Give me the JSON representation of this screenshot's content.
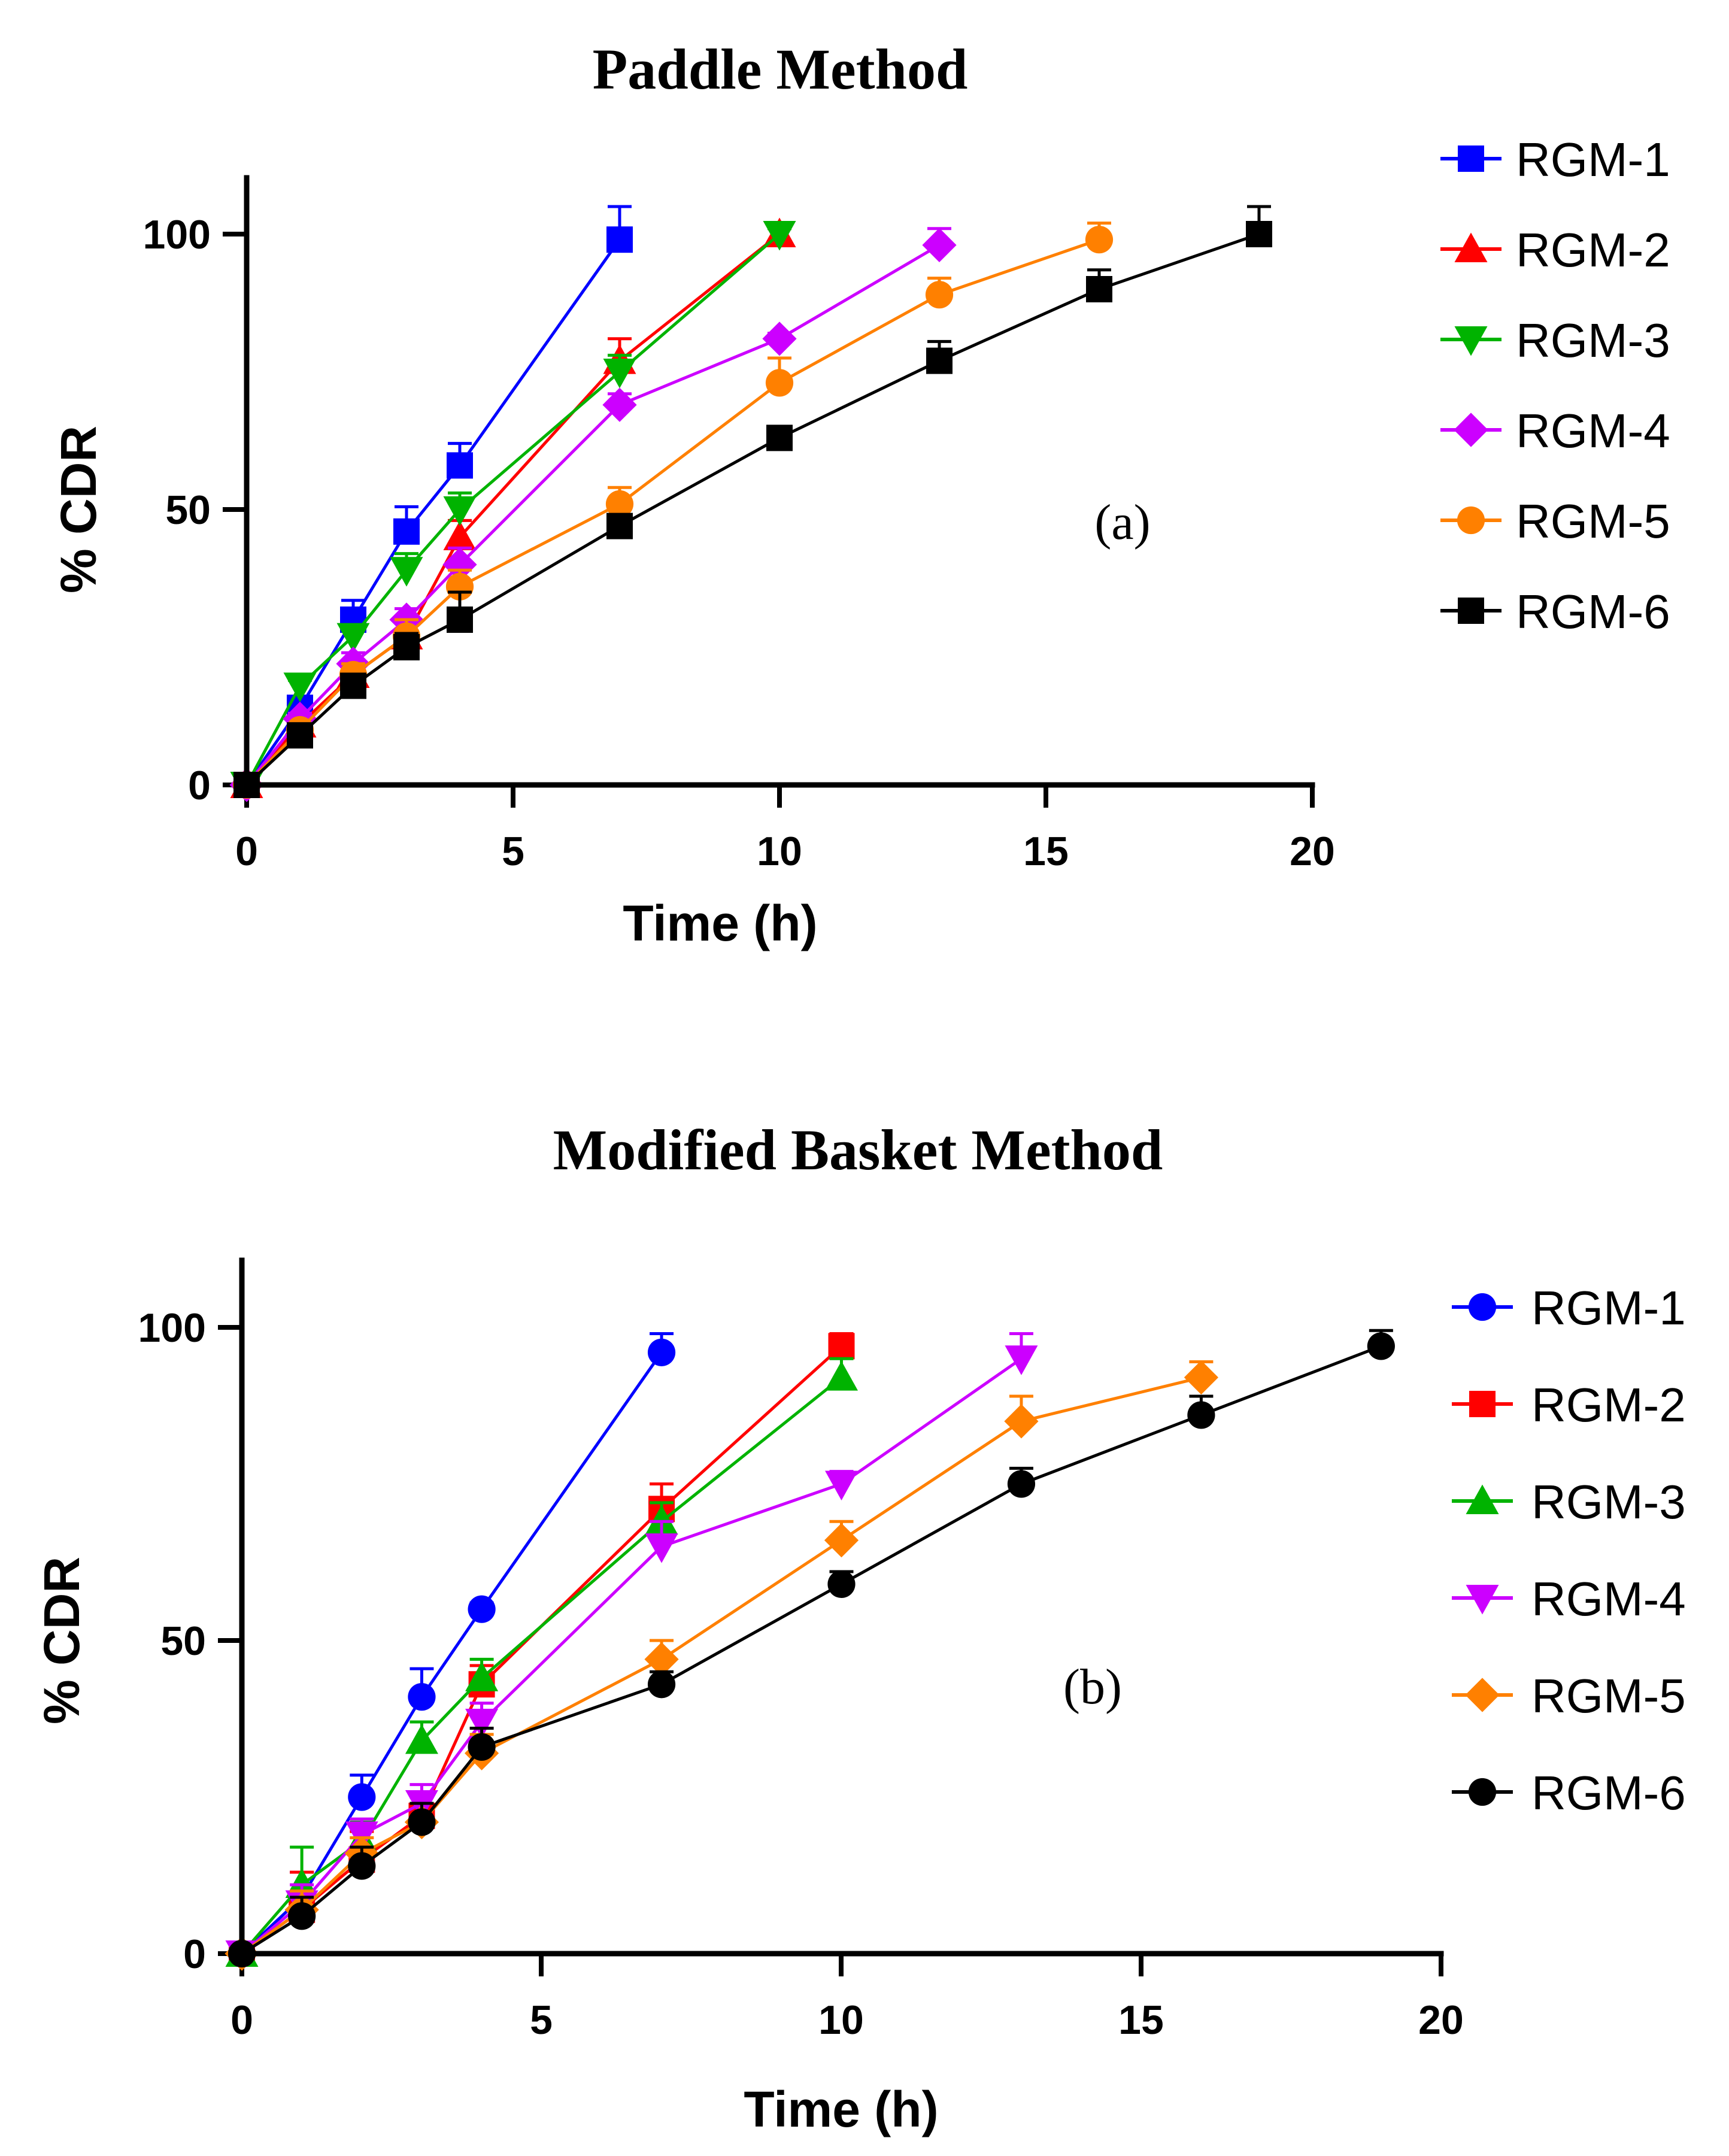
{
  "chart_data": [
    {
      "type": "line",
      "title": "Paddle Method",
      "xlabel": "Time (h)",
      "ylabel": "% CDR",
      "xlim": [
        0,
        20
      ],
      "ylim": [
        0,
        110
      ],
      "xticks": [
        0,
        5,
        10,
        15,
        20
      ],
      "yticks": [
        0,
        50,
        100
      ],
      "annotation": "(a)",
      "legend_position": "right",
      "series": [
        {
          "name": "RGM-1",
          "color": "#0000ff",
          "marker": "square",
          "x": [
            0,
            1,
            2,
            3,
            4,
            7
          ],
          "values": [
            0,
            14,
            30,
            46,
            58,
            99
          ],
          "errors": [
            0,
            1.5,
            3.5,
            4.5,
            4,
            6
          ]
        },
        {
          "name": "RGM-2",
          "color": "#ff0000",
          "marker": "triangle-up",
          "x": [
            0,
            1,
            2,
            3,
            4,
            7,
            10
          ],
          "values": [
            0,
            11,
            20,
            27,
            45,
            77,
            100
          ],
          "errors": [
            0,
            1,
            2,
            3,
            3,
            4,
            1
          ]
        },
        {
          "name": "RGM-3",
          "color": "#00b300",
          "marker": "triangle-down",
          "x": [
            0,
            1,
            2,
            3,
            4,
            7,
            10
          ],
          "values": [
            0,
            18,
            27,
            39,
            50,
            75,
            100
          ],
          "errors": [
            0,
            1,
            2,
            3,
            3,
            3,
            1
          ]
        },
        {
          "name": "RGM-4",
          "color": "#cc00ff",
          "marker": "diamond",
          "x": [
            0,
            1,
            2,
            3,
            4,
            7,
            10,
            13
          ],
          "values": [
            0,
            12,
            22,
            30,
            40,
            69,
            81,
            98
          ],
          "errors": [
            0,
            1,
            2,
            2,
            3,
            2,
            1,
            3
          ]
        },
        {
          "name": "RGM-5",
          "color": "#ff8000",
          "marker": "circle",
          "x": [
            0,
            1,
            2,
            3,
            4,
            7,
            10,
            13,
            16
          ],
          "values": [
            0,
            10,
            20,
            27,
            36,
            51,
            73,
            89,
            99
          ],
          "errors": [
            0,
            1,
            2,
            3,
            3,
            3,
            4.5,
            3,
            3
          ]
        },
        {
          "name": "RGM-6",
          "color": "#000000",
          "marker": "square",
          "x": [
            0,
            1,
            2,
            3,
            4,
            7,
            10,
            13,
            16,
            19
          ],
          "values": [
            0,
            9,
            18,
            25,
            30,
            47,
            63,
            77,
            90,
            100
          ],
          "errors": [
            0,
            1,
            2,
            2.5,
            5,
            2,
            2,
            3.5,
            3.5,
            5
          ]
        }
      ]
    },
    {
      "type": "line",
      "title": "Modified Basket Method",
      "xlabel": "Time (h)",
      "ylabel": "% CDR",
      "xlim": [
        0,
        20
      ],
      "ylim": [
        0,
        110
      ],
      "xticks": [
        0,
        5,
        10,
        15,
        20
      ],
      "yticks": [
        0,
        50,
        100
      ],
      "annotation": "(b)",
      "legend_position": "right",
      "series": [
        {
          "name": "RGM-1",
          "color": "#0000ff",
          "marker": "circle",
          "x": [
            0,
            1,
            2,
            3,
            4,
            7
          ],
          "values": [
            0,
            9,
            25,
            41,
            55,
            96
          ],
          "errors": [
            0,
            4,
            3.5,
            4.5,
            1,
            3
          ]
        },
        {
          "name": "RGM-2",
          "color": "#ff0000",
          "marker": "square",
          "x": [
            0,
            1,
            2,
            3,
            4,
            7,
            10
          ],
          "values": [
            0,
            7,
            15,
            22,
            43,
            71,
            97
          ],
          "errors": [
            0,
            6,
            4.5,
            3,
            3,
            4,
            2
          ]
        },
        {
          "name": "RGM-3",
          "color": "#00b300",
          "marker": "triangle-up",
          "x": [
            0,
            1,
            2,
            3,
            4,
            7,
            10
          ],
          "values": [
            0,
            11,
            18,
            34,
            44,
            69,
            92
          ],
          "errors": [
            0,
            6,
            3,
            3,
            3,
            3,
            3
          ]
        },
        {
          "name": "RGM-4",
          "color": "#cc00ff",
          "marker": "triangle-down",
          "x": [
            0,
            1,
            2,
            3,
            4,
            7,
            10,
            13
          ],
          "values": [
            0,
            8,
            19,
            24,
            37,
            65,
            75,
            95
          ],
          "errors": [
            0,
            3,
            2.5,
            3,
            3,
            4,
            2,
            4
          ]
        },
        {
          "name": "RGM-5",
          "color": "#ff8000",
          "marker": "diamond",
          "x": [
            0,
            1,
            2,
            3,
            4,
            7,
            10,
            13,
            16
          ],
          "values": [
            0,
            7,
            16,
            21,
            32,
            47,
            66,
            85,
            92
          ],
          "errors": [
            0,
            3,
            2.5,
            3,
            3,
            3,
            3,
            4,
            2.5
          ]
        },
        {
          "name": "RGM-6",
          "color": "#000000",
          "marker": "circle",
          "x": [
            0,
            1,
            2,
            3,
            4,
            7,
            10,
            13,
            16,
            19
          ],
          "values": [
            0,
            6,
            14,
            21,
            33,
            43,
            59,
            75,
            86,
            97
          ],
          "errors": [
            0,
            3,
            3,
            3,
            3,
            2,
            2,
            2.5,
            3,
            2.5
          ]
        }
      ]
    }
  ]
}
